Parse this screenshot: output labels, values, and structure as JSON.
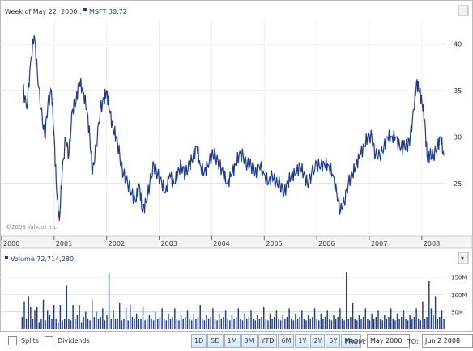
{
  "header": {
    "label": "Week of May 22, 2000 :",
    "series_label": "MSFT 30.72"
  },
  "volume_header": {
    "label": "Volume 72,714,280"
  },
  "copyright": "©2008 Yahoo! Inc",
  "controls": {
    "splits_label": "Splits",
    "dividends_label": "Dividends",
    "ranges": [
      "1D",
      "5D",
      "1M",
      "3M",
      "YTD",
      "6M",
      "1Y",
      "2Y",
      "5Y",
      "Max"
    ],
    "from_label": "FROM:",
    "from_value": "May 2000",
    "to_label": "TO:",
    "to_value": "Jun 2 2008"
  },
  "colors": {
    "series": "#1f3a93",
    "volume": "#1f3a93",
    "grid": "#d8d8d8"
  },
  "chart_data": [
    {
      "type": "line",
      "title": "MSFT",
      "x_start": "2000-05",
      "x_end": "2008-06",
      "x_ticks": [
        "2000",
        "2001",
        "2002",
        "2003",
        "2004",
        "2005",
        "2006",
        "2007",
        "2008"
      ],
      "y_ticks": [
        25,
        30,
        35,
        40
      ],
      "ylim": [
        19.5,
        42.5
      ],
      "grid": true,
      "series": [
        {
          "values": [
            [
              2000.4,
              35.5
            ],
            [
              2000.48,
              33
            ],
            [
              2000.55,
              38
            ],
            [
              2000.62,
              41
            ],
            [
              2000.68,
              37
            ],
            [
              2000.75,
              33
            ],
            [
              2000.82,
              30
            ],
            [
              2000.88,
              33.5
            ],
            [
              2000.95,
              35
            ],
            [
              2001.0,
              30
            ],
            [
              2001.05,
              24
            ],
            [
              2001.1,
              21
            ],
            [
              2001.15,
              26
            ],
            [
              2001.22,
              30
            ],
            [
              2001.28,
              28
            ],
            [
              2001.35,
              33
            ],
            [
              2001.42,
              34
            ],
            [
              2001.48,
              36
            ],
            [
              2001.55,
              35
            ],
            [
              2001.62,
              33
            ],
            [
              2001.68,
              30
            ],
            [
              2001.73,
              26
            ],
            [
              2001.8,
              29
            ],
            [
              2001.88,
              33
            ],
            [
              2001.95,
              34
            ],
            [
              2002.0,
              35
            ],
            [
              2002.05,
              33
            ],
            [
              2002.12,
              31
            ],
            [
              2002.18,
              30
            ],
            [
              2002.25,
              28
            ],
            [
              2002.32,
              26
            ],
            [
              2002.4,
              25
            ],
            [
              2002.48,
              24
            ],
            [
              2002.55,
              23
            ],
            [
              2002.62,
              25
            ],
            [
              2002.68,
              22
            ],
            [
              2002.75,
              23
            ],
            [
              2002.82,
              25
            ],
            [
              2002.9,
              27
            ],
            [
              2002.97,
              26
            ],
            [
              2003.05,
              25
            ],
            [
              2003.12,
              24
            ],
            [
              2003.2,
              26
            ],
            [
              2003.28,
              25
            ],
            [
              2003.35,
              26
            ],
            [
              2003.42,
              27
            ],
            [
              2003.5,
              26
            ],
            [
              2003.58,
              27
            ],
            [
              2003.65,
              28
            ],
            [
              2003.72,
              29
            ],
            [
              2003.78,
              27
            ],
            [
              2003.85,
              26
            ],
            [
              2003.92,
              27
            ],
            [
              2004.0,
              28
            ],
            [
              2004.07,
              28
            ],
            [
              2004.15,
              27
            ],
            [
              2004.22,
              26
            ],
            [
              2004.3,
              25
            ],
            [
              2004.38,
              26
            ],
            [
              2004.45,
              27
            ],
            [
              2004.52,
              28
            ],
            [
              2004.6,
              28
            ],
            [
              2004.68,
              27
            ],
            [
              2004.75,
              27
            ],
            [
              2004.82,
              26
            ],
            [
              2004.9,
              27
            ],
            [
              2005.0,
              26
            ],
            [
              2005.08,
              25
            ],
            [
              2005.15,
              26
            ],
            [
              2005.22,
              25
            ],
            [
              2005.3,
              25
            ],
            [
              2005.38,
              24
            ],
            [
              2005.45,
              25
            ],
            [
              2005.52,
              26
            ],
            [
              2005.6,
              26
            ],
            [
              2005.68,
              27
            ],
            [
              2005.75,
              26
            ],
            [
              2005.82,
              25
            ],
            [
              2005.9,
              26
            ],
            [
              2006.0,
              27
            ],
            [
              2006.08,
              27
            ],
            [
              2006.15,
              27
            ],
            [
              2006.22,
              27
            ],
            [
              2006.3,
              26
            ],
            [
              2006.38,
              24
            ],
            [
              2006.45,
              22
            ],
            [
              2006.52,
              23
            ],
            [
              2006.6,
              25
            ],
            [
              2006.68,
              26
            ],
            [
              2006.75,
              27
            ],
            [
              2006.82,
              28
            ],
            [
              2006.9,
              29
            ],
            [
              2006.97,
              30
            ],
            [
              2007.05,
              30
            ],
            [
              2007.12,
              28
            ],
            [
              2007.2,
              28
            ],
            [
              2007.28,
              29
            ],
            [
              2007.35,
              30
            ],
            [
              2007.42,
              30
            ],
            [
              2007.5,
              30
            ],
            [
              2007.58,
              29
            ],
            [
              2007.65,
              29
            ],
            [
              2007.72,
              29
            ],
            [
              2007.78,
              30
            ],
            [
              2007.85,
              33
            ],
            [
              2007.9,
              36
            ],
            [
              2007.95,
              35
            ],
            [
              2008.0,
              34
            ],
            [
              2008.05,
              32
            ],
            [
              2008.1,
              28
            ],
            [
              2008.15,
              28
            ],
            [
              2008.22,
              28
            ],
            [
              2008.3,
              29
            ],
            [
              2008.36,
              30
            ],
            [
              2008.42,
              28
            ]
          ]
        }
      ]
    },
    {
      "type": "bar",
      "title": "Volume",
      "y_ticks": [
        "50M",
        "100M",
        "150M"
      ],
      "y_tick_values": [
        50,
        100,
        150
      ],
      "ylim": [
        0,
        175
      ],
      "x_range": [
        2000.38,
        2008.45
      ],
      "values": [
        35,
        80,
        30,
        95,
        65,
        30,
        55,
        65,
        20,
        30,
        85,
        25,
        55,
        40,
        30,
        70,
        30,
        20,
        70,
        25,
        30,
        125,
        30,
        25,
        70,
        30,
        40,
        70,
        20,
        35,
        50,
        30,
        25,
        85,
        35,
        50,
        30,
        35,
        60,
        25,
        40,
        160,
        30,
        55,
        30,
        30,
        75,
        25,
        30,
        65,
        25,
        70,
        35,
        30,
        45,
        30,
        30,
        65,
        25,
        30,
        40,
        30,
        25,
        50,
        30,
        35,
        60,
        30,
        25,
        45,
        30,
        35,
        60,
        30,
        25,
        40,
        30,
        35,
        55,
        30,
        25,
        45,
        30,
        35,
        70,
        30,
        25,
        40,
        30,
        35,
        60,
        30,
        25,
        45,
        30,
        35,
        55,
        30,
        25,
        40,
        30,
        35,
        60,
        30,
        25,
        45,
        30,
        35,
        55,
        30,
        25,
        40,
        30,
        35,
        65,
        30,
        25,
        45,
        30,
        35,
        55,
        30,
        25,
        40,
        30,
        35,
        60,
        30,
        25,
        45,
        30,
        35,
        55,
        30,
        25,
        40,
        30,
        35,
        60,
        30,
        25,
        45,
        30,
        35,
        55,
        30,
        25,
        40,
        30,
        35,
        60,
        30,
        25,
        165,
        30,
        35,
        75,
        30,
        25,
        40,
        30,
        35,
        60,
        30,
        25,
        45,
        30,
        35,
        55,
        30,
        25,
        40,
        30,
        35,
        60,
        30,
        25,
        45,
        30,
        35,
        55,
        30,
        25,
        40,
        30,
        35,
        60,
        30,
        25,
        80,
        30,
        35,
        140,
        60,
        40,
        95,
        30,
        35,
        55,
        30
      ]
    }
  ]
}
